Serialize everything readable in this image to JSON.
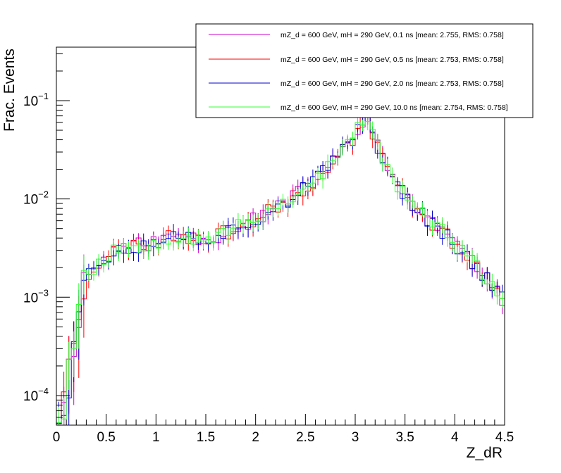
{
  "chart_data": {
    "type": "line",
    "title": "",
    "xlabel": "Z_dR",
    "ylabel": "Frac. Events",
    "xlim": [
      0,
      4.5
    ],
    "ylim": [
      5e-05,
      0.35
    ],
    "yscale": "log",
    "grid": false,
    "legend_position": "top-right",
    "x_ticks": [
      {
        "v": 0,
        "label": "0"
      },
      {
        "v": 0.5,
        "label": "0.5"
      },
      {
        "v": 1,
        "label": "1"
      },
      {
        "v": 1.5,
        "label": "1.5"
      },
      {
        "v": 2,
        "label": "2"
      },
      {
        "v": 2.5,
        "label": "2.5"
      },
      {
        "v": 3,
        "label": "3"
      },
      {
        "v": 3.5,
        "label": "3.5"
      },
      {
        "v": 4,
        "label": "4"
      },
      {
        "v": 4.5,
        "label": "4.5"
      }
    ],
    "y_ticks": [
      {
        "v": 0.0001,
        "base": "10",
        "exp": "−4"
      },
      {
        "v": 0.001,
        "base": "10",
        "exp": "−3"
      },
      {
        "v": 0.01,
        "base": "10",
        "exp": "−2"
      },
      {
        "v": 0.1,
        "base": "10",
        "exp": "−1"
      }
    ],
    "bin_width": 0.05,
    "bin_edges_start": 0,
    "profile": {
      "x": [
        0.02,
        0.1,
        0.15,
        0.2,
        0.3,
        0.45,
        0.6,
        0.8,
        1.0,
        1.2,
        1.4,
        1.6,
        1.8,
        2.0,
        2.2,
        2.4,
        2.6,
        2.8,
        2.95,
        3.05,
        3.12,
        3.2,
        3.3,
        3.5,
        3.7,
        3.9,
        4.1,
        4.3,
        4.5
      ],
      "y": [
        7e-05,
        0.00012,
        0.0003,
        0.0007,
        0.0017,
        0.0023,
        0.0031,
        0.0034,
        0.0037,
        0.0043,
        0.0041,
        0.0042,
        0.0051,
        0.0063,
        0.0082,
        0.011,
        0.016,
        0.025,
        0.038,
        0.06,
        0.072,
        0.04,
        0.022,
        0.011,
        0.0066,
        0.0046,
        0.0027,
        0.0017,
        0.0009
      ]
    },
    "series": [
      {
        "name": "mZ_d = 600 GeV, mH = 290 GeV, 0.1 ns [mean: 2.755, RMS: 0.758]",
        "color": "#cc00cc",
        "seed": 11
      },
      {
        "name": "mZ_d = 600 GeV, mH = 290 GeV, 0.5 ns [mean: 2.753, RMS: 0.758]",
        "color": "#ff0000",
        "seed": 23
      },
      {
        "name": "mZ_d = 600 GeV, mH = 290 GeV, 2.0 ns [mean: 2.753, RMS: 0.758]",
        "color": "#0000cc",
        "seed": 37
      },
      {
        "name": "mZ_d = 600 GeV, mH = 290 GeV, 10.0 ns [mean: 2.754, RMS: 0.758]",
        "color": "#33ff33",
        "seed": 53
      }
    ]
  }
}
